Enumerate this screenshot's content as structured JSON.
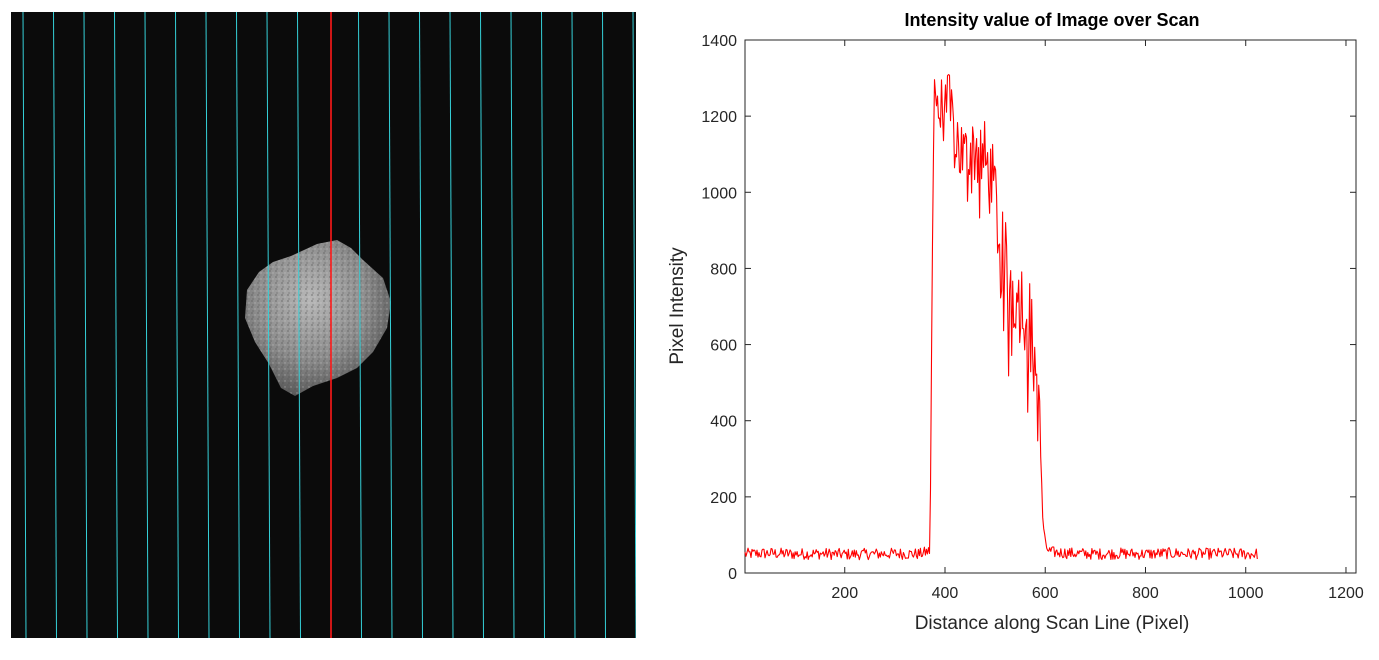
{
  "image_panel": {
    "scan_line_count": 21,
    "scan_line_color": "#35d0d8",
    "selected_line_color": "#ff1a1a",
    "selected_line_index": 10,
    "background_color": "#0b0b0b"
  },
  "chart_data": {
    "type": "line",
    "title": "Intensity value of Image over Scan",
    "xlabel": "Distance along Scan Line (Pixel)",
    "ylabel": "Pixel Intensity",
    "xlim": [
      1,
      1220
    ],
    "ylim": [
      0,
      1400
    ],
    "xticks": [
      200,
      400,
      600,
      800,
      1000,
      1200
    ],
    "yticks": [
      0,
      200,
      400,
      600,
      800,
      1000,
      1200,
      1400
    ],
    "grid": false,
    "series": [
      {
        "color": "#ff0000",
        "x": [
          1,
          50,
          100,
          150,
          200,
          250,
          300,
          350,
          370,
          374,
          378,
          390,
          400,
          420,
          440,
          460,
          480,
          500,
          510,
          520,
          530,
          540,
          550,
          560,
          570,
          580,
          590,
          595,
          600,
          610,
          650,
          700,
          750,
          800,
          850,
          900,
          950,
          1000,
          1024
        ],
        "y": [
          50,
          52,
          50,
          51,
          49,
          50,
          51,
          50,
          58,
          700,
          1280,
          1200,
          1250,
          1150,
          1080,
          1120,
          1080,
          1000,
          850,
          800,
          760,
          740,
          720,
          700,
          650,
          550,
          350,
          150,
          70,
          55,
          52,
          50,
          51,
          50,
          52,
          50,
          51,
          50,
          50
        ],
        "noise": [
          15,
          15,
          15,
          15,
          15,
          15,
          15,
          15,
          15,
          60,
          60,
          90,
          100,
          110,
          110,
          110,
          110,
          110,
          120,
          130,
          120,
          120,
          120,
          120,
          120,
          110,
          110,
          60,
          15,
          15,
          15,
          15,
          15,
          15,
          15,
          15,
          15,
          15,
          15
        ]
      }
    ]
  }
}
